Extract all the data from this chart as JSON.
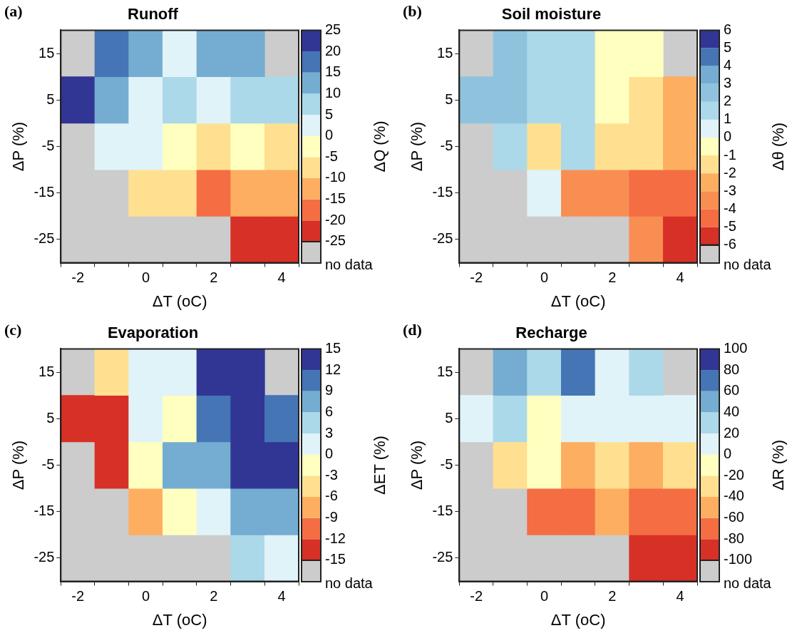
{
  "chart_data": [
    {
      "type": "heatmap",
      "title": "Runoff",
      "xlabel": "ΔT (oC)",
      "ylabel": "ΔP (%)",
      "clabel": "ΔQ (%)",
      "categories": [
        "-2",
        null,
        "0",
        null,
        "2",
        null,
        "4"
      ],
      "y_categories": [
        "15",
        "5",
        "-5",
        "-15",
        "-25"
      ],
      "cells": [
        [
          null,
          17.5,
          12.5,
          2.5,
          12.5,
          12.5,
          null
        ],
        [
          22.5,
          12.5,
          2.5,
          7.5,
          2.5,
          7.5,
          7.5
        ],
        [
          null,
          2.5,
          2.5,
          -2.5,
          -7.5,
          -2.5,
          -7.5
        ],
        [
          null,
          null,
          -7.5,
          -7.5,
          -17.5,
          -12.5,
          -12.5
        ],
        [
          null,
          null,
          null,
          null,
          null,
          -22.5,
          -22.5
        ]
      ],
      "clim": [
        -25,
        25
      ],
      "cticks": [
        -25,
        -20,
        -15,
        -10,
        -5,
        0,
        5,
        10,
        15,
        20,
        25
      ],
      "colors": [
        "#d73027",
        "#f46d43",
        "#fdae61",
        "#fee090",
        "#ffffbf",
        "#e0f3f8",
        "#abd9e9",
        "#74add1",
        "#4575b4",
        "#313695"
      ],
      "annotations": [
        "(a)",
        "no data"
      ]
    },
    {
      "type": "heatmap",
      "title": "Soil moisture",
      "xlabel": "ΔT (oC)",
      "ylabel": "ΔP (%)",
      "clabel": "Δθ (%)",
      "categories": [
        "-2",
        null,
        "0",
        null,
        "2",
        null,
        "4"
      ],
      "y_categories": [
        "15",
        "5",
        "-5",
        "-15",
        "-25"
      ],
      "cells": [
        [
          null,
          2.5,
          1.5,
          1.5,
          -0.5,
          -0.5,
          null
        ],
        [
          2.5,
          2.5,
          1.5,
          1.5,
          -0.5,
          -1.5,
          -2.5
        ],
        [
          null,
          1.5,
          -1.5,
          1.5,
          -1.5,
          -1.5,
          -2.5
        ],
        [
          null,
          null,
          0.5,
          -3.5,
          -3.5,
          -4.5,
          -4.5
        ],
        [
          null,
          null,
          null,
          null,
          null,
          -3.5,
          -5.5
        ]
      ],
      "clim": [
        -6,
        6
      ],
      "cticks": [
        -6,
        -5,
        -4,
        -3,
        -2,
        -1,
        0,
        1,
        2,
        3,
        4,
        5,
        6
      ],
      "colors": [
        "#d73027",
        "#f46d43",
        "#f98e52",
        "#fdae61",
        "#fee090",
        "#ffffbf",
        "#e0f3f8",
        "#abd9e9",
        "#8fc3dd",
        "#74add1",
        "#4575b4",
        "#313695"
      ],
      "annotations": [
        "(b)",
        "no data"
      ]
    },
    {
      "type": "heatmap",
      "title": "Evaporation",
      "xlabel": "ΔT (oC)",
      "ylabel": "ΔP (%)",
      "clabel": "ΔET (%)",
      "categories": [
        "-2",
        null,
        "0",
        null,
        "2",
        null,
        "4"
      ],
      "y_categories": [
        "15",
        "5",
        "-5",
        "-15",
        "-25"
      ],
      "cells": [
        [
          null,
          -4.5,
          1.5,
          1.5,
          13.5,
          13.5,
          null
        ],
        [
          -13.5,
          -13.5,
          1.5,
          -1.5,
          10.5,
          13.5,
          10.5
        ],
        [
          null,
          -13.5,
          -1.5,
          7.5,
          7.5,
          13.5,
          13.5
        ],
        [
          null,
          null,
          -7.5,
          -1.5,
          1.5,
          7.5,
          7.5
        ],
        [
          null,
          null,
          null,
          null,
          null,
          4.5,
          1.5
        ]
      ],
      "clim": [
        -15,
        15
      ],
      "cticks": [
        -15,
        -12,
        -9,
        -6,
        -3,
        0,
        3,
        6,
        9,
        12,
        15
      ],
      "colors": [
        "#d73027",
        "#f46d43",
        "#fdae61",
        "#fee090",
        "#ffffbf",
        "#e0f3f8",
        "#abd9e9",
        "#74add1",
        "#4575b4",
        "#313695"
      ],
      "annotations": [
        "(c)",
        "no data"
      ]
    },
    {
      "type": "heatmap",
      "title": "Recharge",
      "xlabel": "ΔT (oC)",
      "ylabel": "ΔP (%)",
      "clabel": "ΔR (%)",
      "categories": [
        "-2",
        null,
        "0",
        null,
        "2",
        null,
        "4"
      ],
      "y_categories": [
        "15",
        "5",
        "-5",
        "-15",
        "-25"
      ],
      "cells": [
        [
          null,
          50,
          30,
          70,
          10,
          30,
          null
        ],
        [
          10,
          30,
          -10,
          10,
          10,
          10,
          10
        ],
        [
          null,
          -30,
          -10,
          -50,
          -30,
          -50,
          -30
        ],
        [
          null,
          null,
          -70,
          -70,
          -50,
          -70,
          -70
        ],
        [
          null,
          null,
          null,
          null,
          null,
          -90,
          -90
        ]
      ],
      "clim": [
        -100,
        100
      ],
      "cticks": [
        -100,
        -80,
        -60,
        -40,
        -20,
        0,
        20,
        40,
        60,
        80,
        100
      ],
      "colors": [
        "#d73027",
        "#f46d43",
        "#fdae61",
        "#fee090",
        "#ffffbf",
        "#e0f3f8",
        "#abd9e9",
        "#74add1",
        "#4575b4",
        "#313695"
      ],
      "annotations": [
        "(d)",
        "no data"
      ]
    }
  ]
}
